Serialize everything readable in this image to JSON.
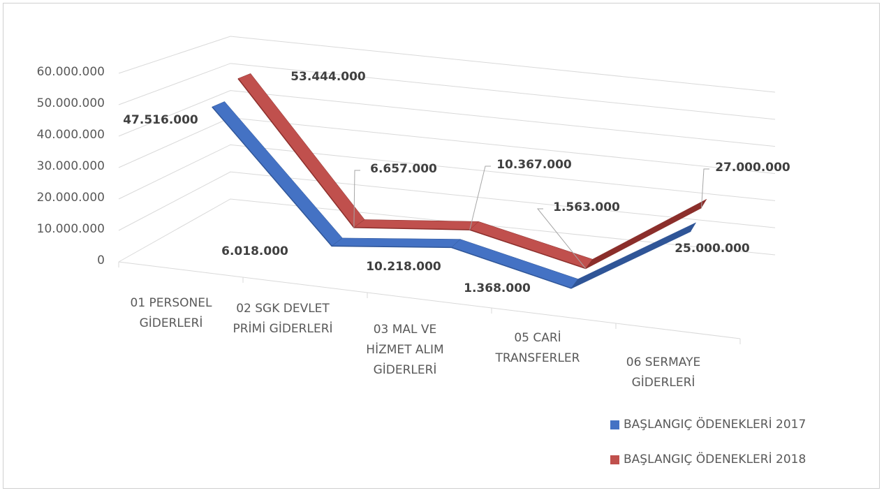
{
  "chart_data": {
    "type": "line",
    "categories": [
      "01 PERSONEL GİDERLERİ",
      "02 SGK DEVLET PRİMİ GİDERLERİ",
      "03 MAL VE HİZMET ALIM GİDERLERİ",
      "05 CARİ TRANSFERLER",
      "06 SERMAYE GİDERLERİ"
    ],
    "series": [
      {
        "name": "BAŞLANGIÇ ÖDENEKLERİ 2017",
        "color": "#4472c4",
        "values": [
          47516000,
          6018000,
          10218000,
          1368000,
          25000000
        ],
        "value_labels": [
          "47.516.000",
          "6.018.000",
          "10.218.000",
          "1.368.000",
          "25.000.000"
        ]
      },
      {
        "name": "BAŞLANGIÇ ÖDENEKLERİ 2018",
        "color": "#c0504d",
        "values": [
          53444000,
          6657000,
          10367000,
          1563000,
          27000000
        ],
        "value_labels": [
          "53.444.000",
          "6.657.000",
          "10.367.000",
          "1.563.000",
          "27.000.000"
        ]
      }
    ],
    "ylim": [
      0,
      60000000
    ],
    "yticks": [
      0,
      {
        "value": 10000000,
        "label": "10.000.000"
      },
      {
        "value": 20000000,
        "label": "20.000.000"
      },
      {
        "value": 30000000,
        "label": "30.000.000"
      },
      {
        "value": 40000000,
        "label": "40.000.000"
      },
      {
        "value": 50000000,
        "label": "50.000.000"
      },
      {
        "value": 60000000,
        "label": "60.000.000"
      }
    ],
    "grid": true,
    "legend": "bottom-right"
  }
}
